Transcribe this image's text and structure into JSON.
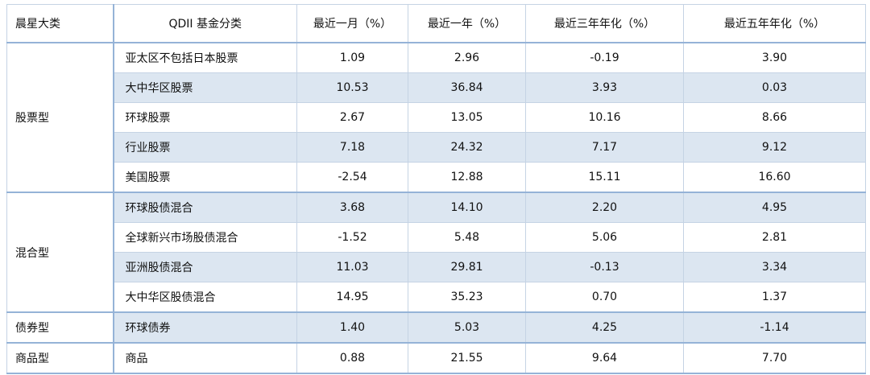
{
  "table": {
    "header": [
      "晨星大类",
      "QDII 基金分类",
      "最近一月（%）",
      "最近一年（%）",
      "最近三年年化（%）",
      "最近五年年化（%）"
    ],
    "groups": [
      {
        "name": "股票型",
        "rows": [
          [
            "亚太区不包括日本股票",
            "1.09",
            "2.96",
            "-0.19",
            "3.90"
          ],
          [
            "大中华区股票",
            "10.53",
            "36.84",
            "3.93",
            "0.03"
          ],
          [
            "环球股票",
            "2.67",
            "13.05",
            "10.16",
            "8.66"
          ],
          [
            "行业股票",
            "7.18",
            "24.32",
            "7.17",
            "9.12"
          ],
          [
            "美国股票",
            "-2.54",
            "12.88",
            "15.11",
            "16.60"
          ]
        ]
      },
      {
        "name": "混合型",
        "rows": [
          [
            "环球股债混合",
            "3.68",
            "14.10",
            "2.20",
            "4.95"
          ],
          [
            "全球新兴市场股债混合",
            "-1.52",
            "5.48",
            "5.06",
            "2.81"
          ],
          [
            "亚洲股债混合",
            "11.03",
            "29.81",
            "-0.13",
            "3.34"
          ],
          [
            "大中华区股债混合",
            "14.95",
            "35.23",
            "0.70",
            "1.37"
          ]
        ]
      },
      {
        "name": "债券型",
        "rows": [
          [
            "环球债券",
            "1.40",
            "5.03",
            "4.25",
            "-1.14"
          ]
        ]
      },
      {
        "name": "商品型",
        "rows": [
          [
            "商品",
            "0.88",
            "21.55",
            "9.64",
            "7.70"
          ]
        ]
      }
    ]
  }
}
